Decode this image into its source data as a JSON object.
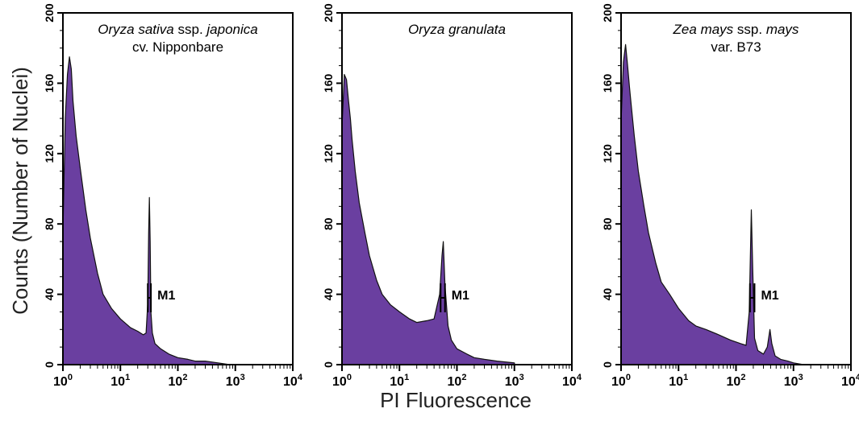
{
  "figure": {
    "ylabel": "Counts (Number of Nuclei)",
    "xlabel": "PI Fluorescence"
  },
  "chart_data": [
    {
      "type": "area",
      "title_parts": [
        [
          {
            "t": "Oryza sativa",
            "i": true
          },
          {
            "t": " ssp. ",
            "i": false
          },
          {
            "t": "japonica",
            "i": true
          }
        ],
        [
          {
            "t": "cv. Nipponbare",
            "i": false
          }
        ]
      ],
      "x_scale": "log",
      "xlim": [
        1,
        10000
      ],
      "ylim": [
        0,
        200
      ],
      "x_ticks": [
        "10^0",
        "10^1",
        "10^2",
        "10^3",
        "10^4"
      ],
      "y_ticks": [
        "0",
        "40",
        "80",
        "120",
        "160",
        "200"
      ],
      "fill_color": "#6a3fa0",
      "marker": {
        "label": "M1",
        "x_start": 30,
        "x_end": 34,
        "y": 38
      },
      "x": [
        1.0,
        1.1,
        1.2,
        1.3,
        1.4,
        1.5,
        1.7,
        2.0,
        2.5,
        3.0,
        4.0,
        5.0,
        7.0,
        10.0,
        15.0,
        20.0,
        25.0,
        28.0,
        30.0,
        31.0,
        32.0,
        33.0,
        34.0,
        36.0,
        40.0,
        50.0,
        70.0,
        100.0,
        150.0,
        200.0,
        300.0,
        500.0,
        800.0,
        1000.0
      ],
      "values": [
        75,
        140,
        165,
        175,
        168,
        150,
        130,
        112,
        88,
        72,
        52,
        40,
        32,
        26,
        21,
        19,
        17,
        18,
        35,
        75,
        95,
        70,
        30,
        18,
        12,
        9,
        6,
        4,
        3,
        2,
        2,
        1,
        0,
        0
      ]
    },
    {
      "type": "area",
      "title_parts": [
        [
          {
            "t": "Oryza granulata",
            "i": true
          }
        ]
      ],
      "x_scale": "log",
      "xlim": [
        1,
        10000
      ],
      "ylim": [
        0,
        200
      ],
      "x_ticks": [
        "10^0",
        "10^1",
        "10^2",
        "10^3",
        "10^4"
      ],
      "y_ticks": [
        "0",
        "40",
        "80",
        "120",
        "160",
        "200"
      ],
      "fill_color": "#6a3fa0",
      "marker": {
        "label": "M1",
        "x_start": 52,
        "x_end": 62,
        "y": 38
      },
      "x": [
        1.0,
        1.1,
        1.2,
        1.3,
        1.4,
        1.5,
        1.7,
        2.0,
        2.5,
        3.0,
        4.0,
        5.0,
        7.0,
        10.0,
        15.0,
        20.0,
        30.0,
        40.0,
        50.0,
        55.0,
        58.0,
        62.0,
        70.0,
        80.0,
        100.0,
        150.0,
        200.0,
        300.0,
        500.0,
        1000.0
      ],
      "values": [
        135,
        165,
        162,
        150,
        140,
        128,
        110,
        92,
        75,
        62,
        48,
        40,
        34,
        30,
        26,
        24,
        25,
        26,
        40,
        62,
        70,
        45,
        22,
        14,
        9,
        6,
        4,
        3,
        2,
        1
      ]
    },
    {
      "type": "area",
      "title_parts": [
        [
          {
            "t": "Zea mays",
            "i": true
          },
          {
            "t": " ssp. ",
            "i": false
          },
          {
            "t": "mays",
            "i": true
          }
        ],
        [
          {
            "t": "var. B73",
            "i": false
          }
        ]
      ],
      "x_scale": "log",
      "xlim": [
        1,
        10000
      ],
      "ylim": [
        0,
        200
      ],
      "x_ticks": [
        "10^0",
        "10^1",
        "10^2",
        "10^3",
        "10^4"
      ],
      "y_ticks": [
        "0",
        "40",
        "80",
        "120",
        "160",
        "200"
      ],
      "fill_color": "#6a3fa0",
      "marker": {
        "label": "M1",
        "x_start": 175,
        "x_end": 210,
        "y": 38
      },
      "x": [
        1.0,
        1.1,
        1.2,
        1.3,
        1.4,
        1.5,
        1.7,
        2.0,
        2.5,
        3.0,
        4.0,
        5.0,
        7.0,
        10.0,
        15.0,
        20.0,
        30.0,
        50.0,
        80.0,
        120.0,
        150.0,
        170.0,
        185.0,
        195.0,
        210.0,
        240.0,
        300.0,
        350.0,
        390.0,
        420.0,
        480.0,
        600.0,
        800.0,
        1000.0,
        1500.0
      ],
      "values": [
        138,
        172,
        182,
        170,
        158,
        148,
        130,
        110,
        90,
        75,
        58,
        47,
        40,
        32,
        25,
        22,
        20,
        17,
        14,
        12,
        11,
        30,
        88,
        55,
        15,
        8,
        6,
        10,
        20,
        12,
        5,
        3,
        2,
        1,
        0
      ]
    }
  ]
}
